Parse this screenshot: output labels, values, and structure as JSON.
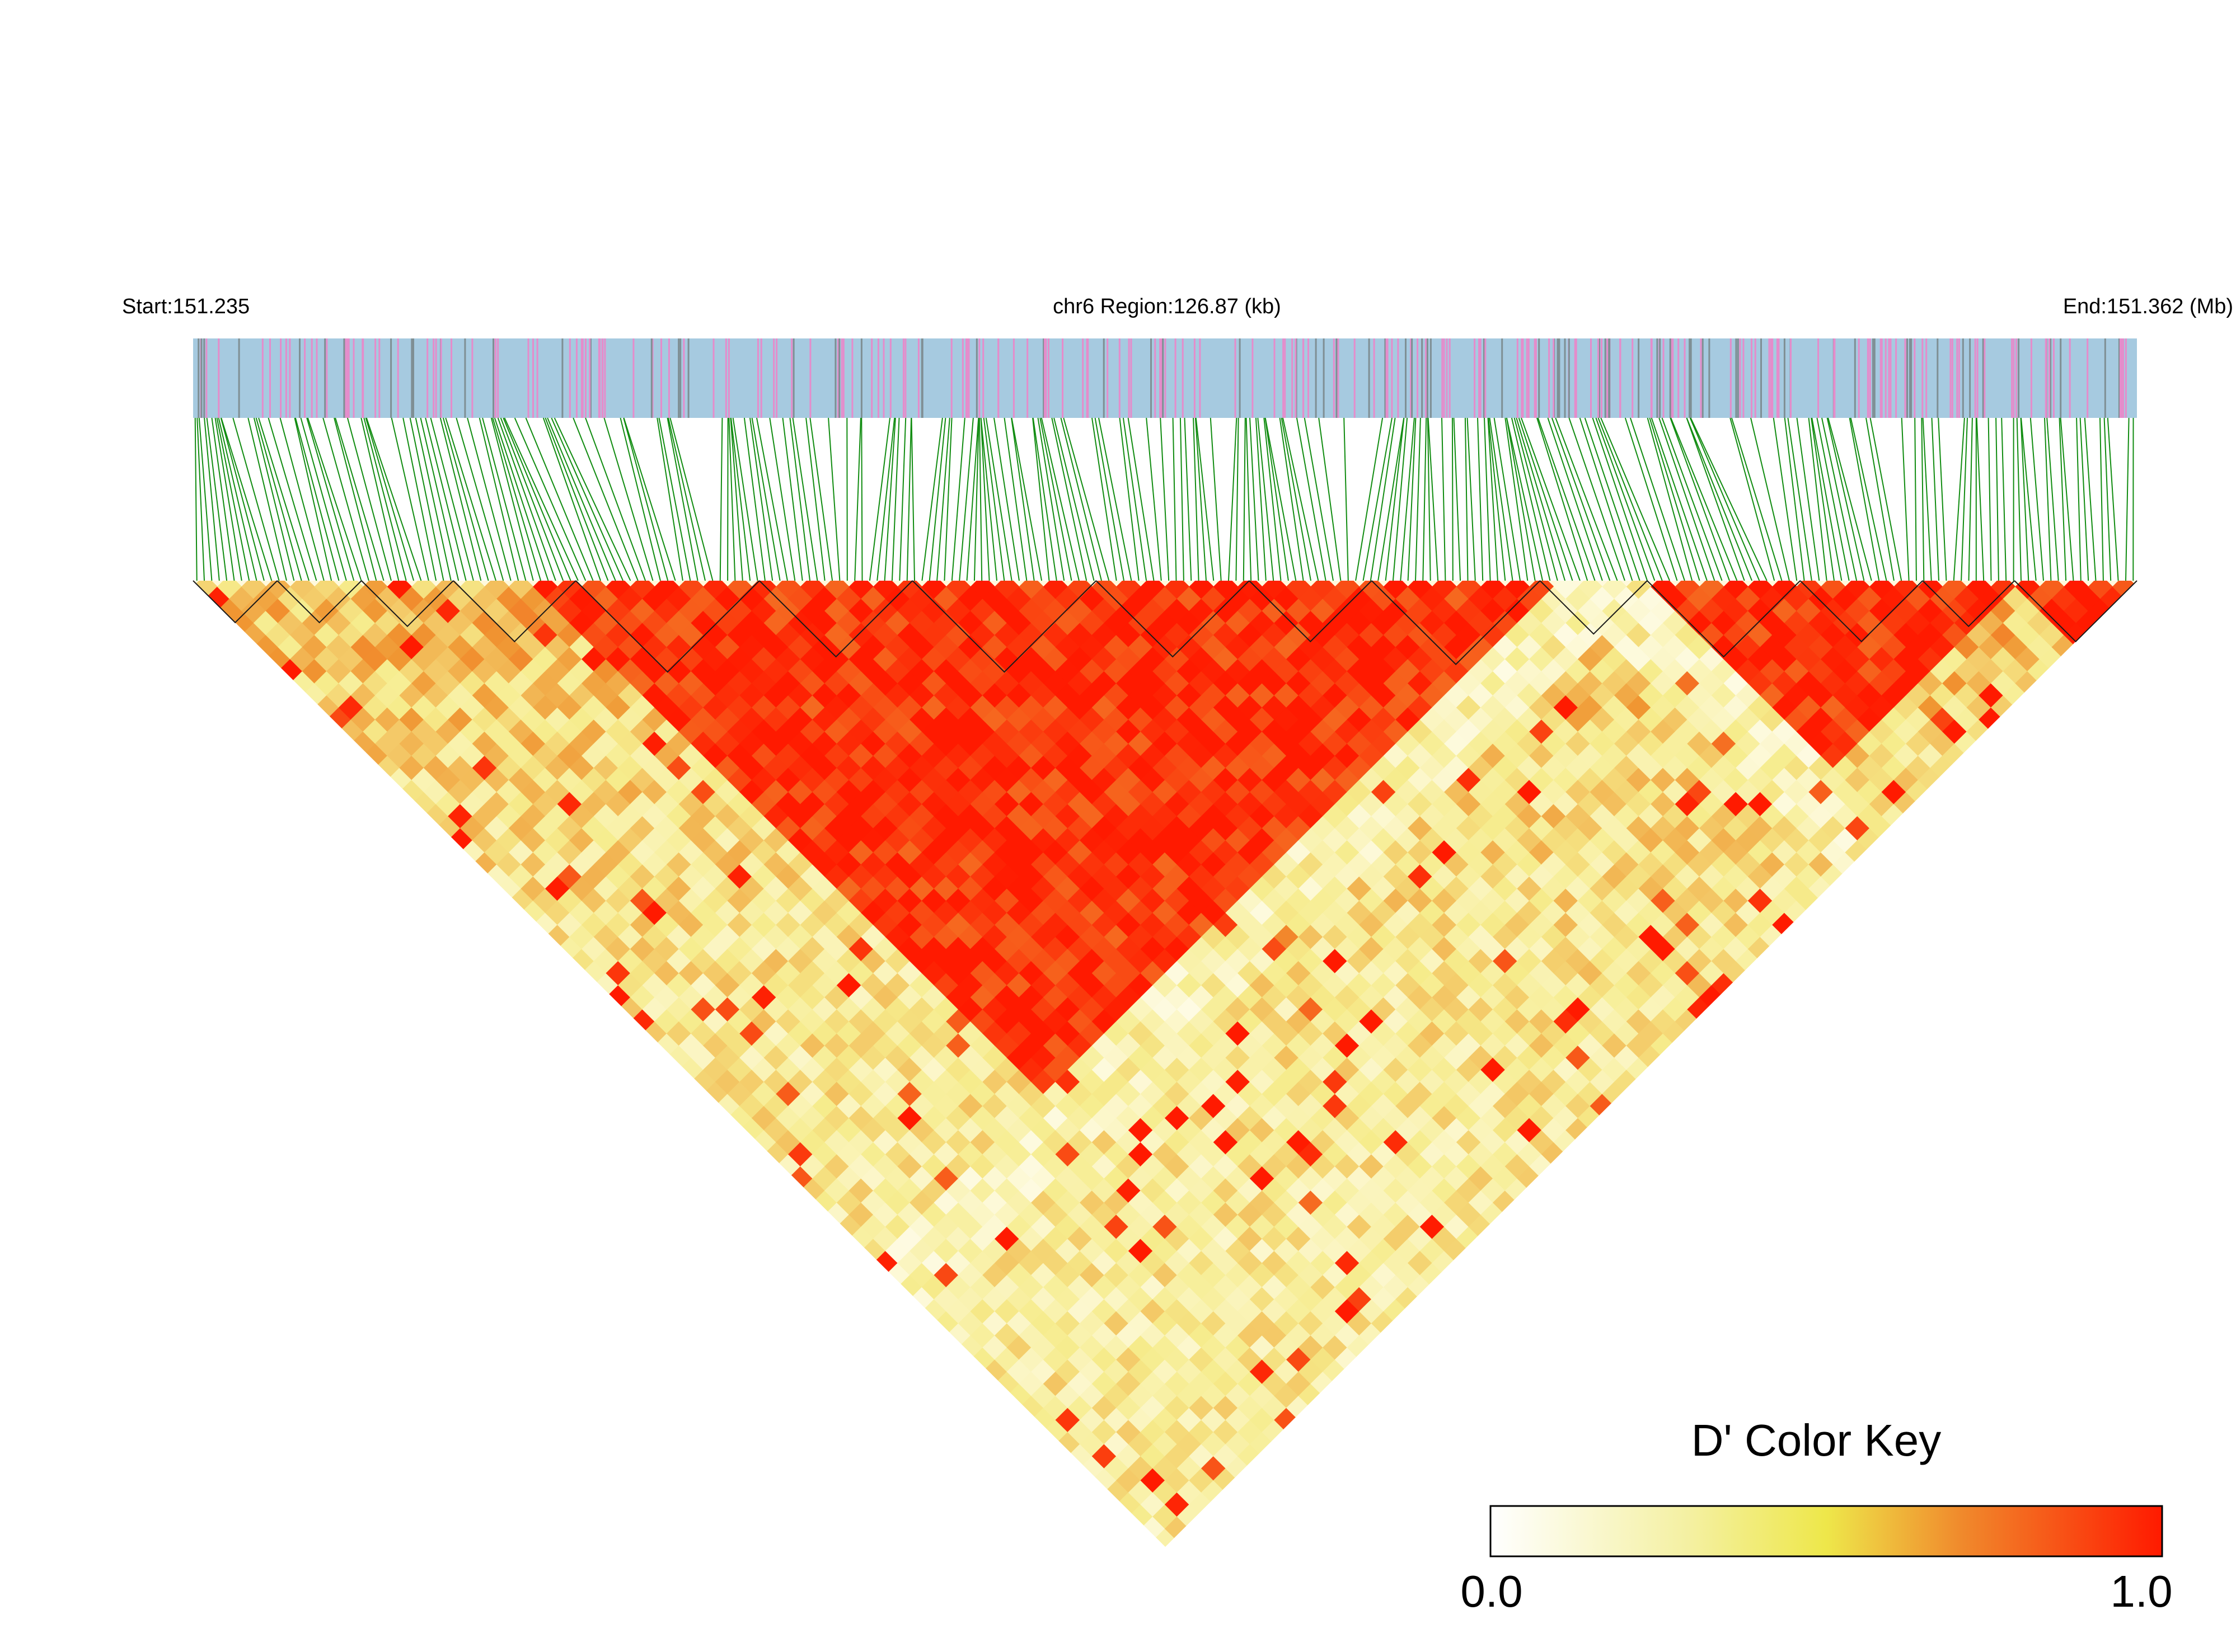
{
  "chart_data": {
    "type": "heatmap",
    "region_start_label": "Start:151.235",
    "region_title": "chr6 Region:126.87 (kb)",
    "region_end_label": "End:151.362 (Mb)",
    "chromosome": "chr6",
    "region_start_mb": 151.235,
    "region_end_mb": 151.362,
    "region_length_kb": 126.87,
    "metric": "D'",
    "color_key": {
      "title": "D' Color Key",
      "min_label": "0.0",
      "max_label": "1.0",
      "min": 0.0,
      "max": 1.0,
      "colors": [
        "#ffffff",
        "#f2ea6a",
        "#f08a2c",
        "#ff1a00"
      ]
    },
    "colors": {
      "snp_bar_background": "#a6cae0",
      "snp_tick_pink": "#e58ccb",
      "snp_tick_gray": "#7f8f94",
      "connector_lines": "#118c11",
      "high_ld": "#ff1a00",
      "low_ld": "#fffbe0"
    },
    "ld_structure": {
      "block_boundaries_mb": [
        151.235,
        151.2405,
        151.246,
        151.252,
        151.26,
        151.272,
        151.282,
        151.294,
        151.304,
        151.312,
        151.323,
        151.33,
        151.34,
        151.348,
        151.354,
        151.362
      ],
      "major_high_ld_regions_mb": [
        [
          151.2575,
          151.3235
        ],
        [
          151.33,
          151.354
        ],
        [
          151.354,
          151.362
        ]
      ],
      "low_ld_region_mb": [
        151.3235,
        151.33
      ]
    }
  }
}
